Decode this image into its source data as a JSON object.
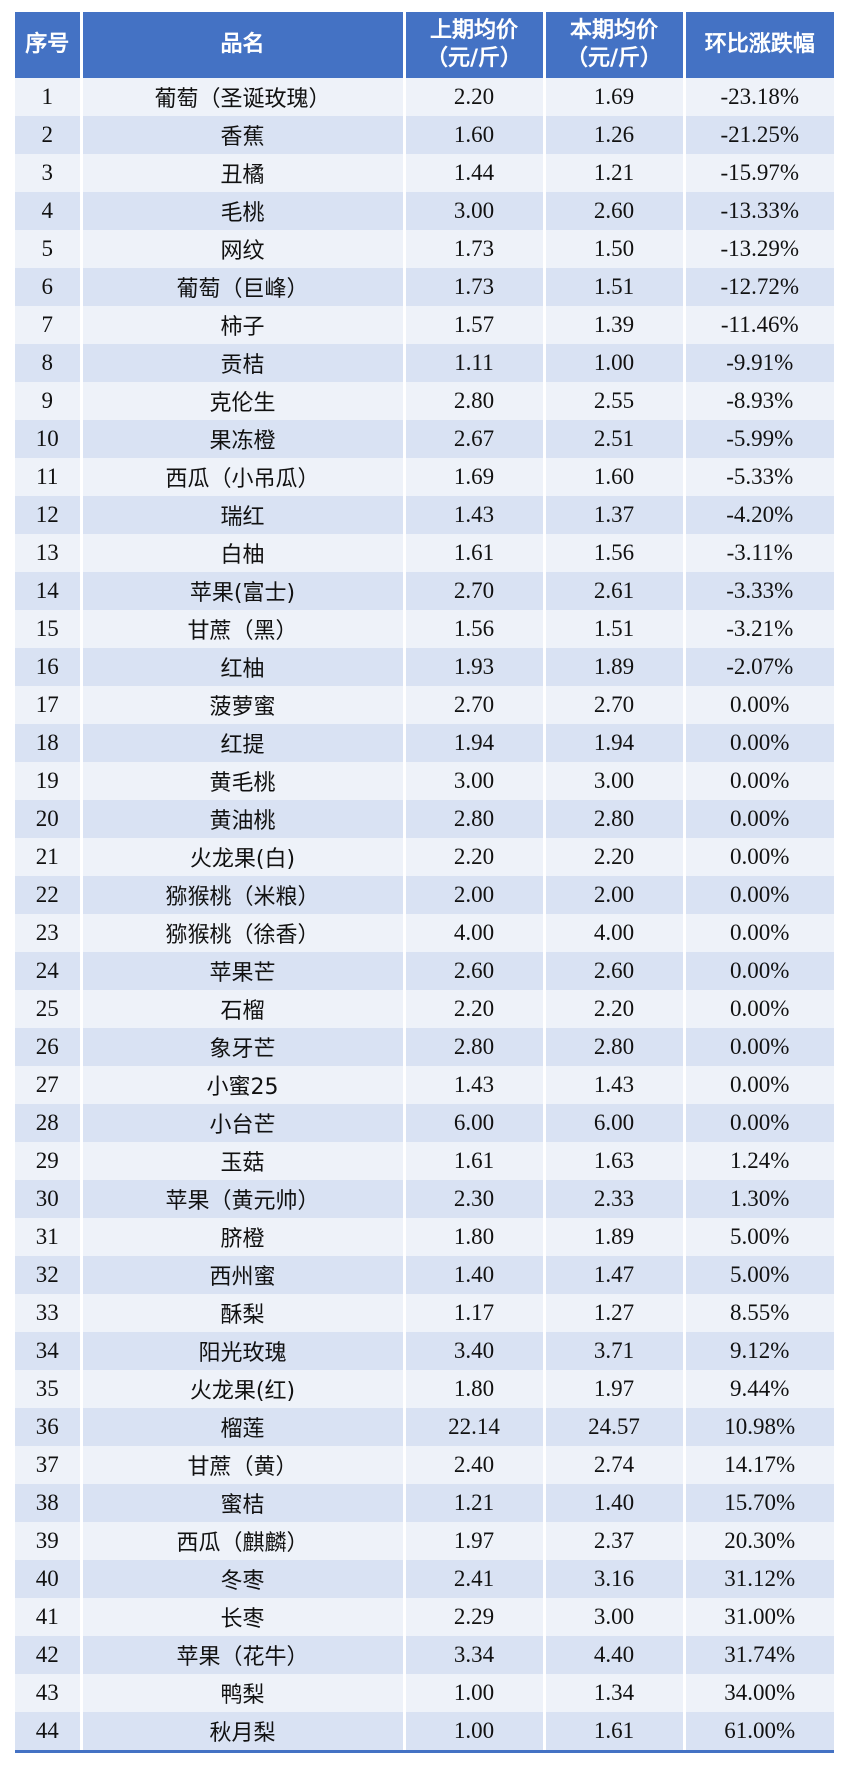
{
  "table": {
    "headers": {
      "index": "序号",
      "name": "品名",
      "prev_line1": "上期均价",
      "prev_line2": "（元/斤）",
      "cur_line1": "本期均价",
      "cur_line2": "（元/斤）",
      "change": "环比涨跌幅"
    },
    "rows": [
      {
        "index": "1",
        "name": "葡萄（圣诞玫瑰）",
        "prev": "2.20",
        "cur": "1.69",
        "change": "-23.18%"
      },
      {
        "index": "2",
        "name": "香蕉",
        "prev": "1.60",
        "cur": "1.26",
        "change": "-21.25%"
      },
      {
        "index": "3",
        "name": "丑橘",
        "prev": "1.44",
        "cur": "1.21",
        "change": "-15.97%"
      },
      {
        "index": "4",
        "name": "毛桃",
        "prev": "3.00",
        "cur": "2.60",
        "change": "-13.33%"
      },
      {
        "index": "5",
        "name": "网纹",
        "prev": "1.73",
        "cur": "1.50",
        "change": "-13.29%"
      },
      {
        "index": "6",
        "name": "葡萄（巨峰）",
        "prev": "1.73",
        "cur": "1.51",
        "change": "-12.72%"
      },
      {
        "index": "7",
        "name": "柿子",
        "prev": "1.57",
        "cur": "1.39",
        "change": "-11.46%"
      },
      {
        "index": "8",
        "name": "贡桔",
        "prev": "1.11",
        "cur": "1.00",
        "change": "-9.91%"
      },
      {
        "index": "9",
        "name": "克伦生",
        "prev": "2.80",
        "cur": "2.55",
        "change": "-8.93%"
      },
      {
        "index": "10",
        "name": "果冻橙",
        "prev": "2.67",
        "cur": "2.51",
        "change": "-5.99%"
      },
      {
        "index": "11",
        "name": "西瓜（小吊瓜）",
        "prev": "1.69",
        "cur": "1.60",
        "change": "-5.33%"
      },
      {
        "index": "12",
        "name": "瑞红",
        "prev": "1.43",
        "cur": "1.37",
        "change": "-4.20%"
      },
      {
        "index": "13",
        "name": "白柚",
        "prev": "1.61",
        "cur": "1.56",
        "change": "-3.11%"
      },
      {
        "index": "14",
        "name": "苹果(富士)",
        "prev": "2.70",
        "cur": "2.61",
        "change": "-3.33%"
      },
      {
        "index": "15",
        "name": "甘蔗（黑）",
        "prev": "1.56",
        "cur": "1.51",
        "change": "-3.21%"
      },
      {
        "index": "16",
        "name": "红柚",
        "prev": "1.93",
        "cur": "1.89",
        "change": "-2.07%"
      },
      {
        "index": "17",
        "name": "菠萝蜜",
        "prev": "2.70",
        "cur": "2.70",
        "change": "0.00%"
      },
      {
        "index": "18",
        "name": "红提",
        "prev": "1.94",
        "cur": "1.94",
        "change": "0.00%"
      },
      {
        "index": "19",
        "name": "黄毛桃",
        "prev": "3.00",
        "cur": "3.00",
        "change": "0.00%"
      },
      {
        "index": "20",
        "name": "黄油桃",
        "prev": "2.80",
        "cur": "2.80",
        "change": "0.00%"
      },
      {
        "index": "21",
        "name": "火龙果(白)",
        "prev": "2.20",
        "cur": "2.20",
        "change": "0.00%"
      },
      {
        "index": "22",
        "name": "猕猴桃（米粮）",
        "prev": "2.00",
        "cur": "2.00",
        "change": "0.00%"
      },
      {
        "index": "23",
        "name": "猕猴桃（徐香）",
        "prev": "4.00",
        "cur": "4.00",
        "change": "0.00%"
      },
      {
        "index": "24",
        "name": "苹果芒",
        "prev": "2.60",
        "cur": "2.60",
        "change": "0.00%"
      },
      {
        "index": "25",
        "name": "石榴",
        "prev": "2.20",
        "cur": "2.20",
        "change": "0.00%"
      },
      {
        "index": "26",
        "name": "象牙芒",
        "prev": "2.80",
        "cur": "2.80",
        "change": "0.00%"
      },
      {
        "index": "27",
        "name": "小蜜25",
        "prev": "1.43",
        "cur": "1.43",
        "change": "0.00%"
      },
      {
        "index": "28",
        "name": "小台芒",
        "prev": "6.00",
        "cur": "6.00",
        "change": "0.00%"
      },
      {
        "index": "29",
        "name": "玉菇",
        "prev": "1.61",
        "cur": "1.63",
        "change": "1.24%"
      },
      {
        "index": "30",
        "name": "苹果（黄元帅）",
        "prev": "2.30",
        "cur": "2.33",
        "change": "1.30%"
      },
      {
        "index": "31",
        "name": "脐橙",
        "prev": "1.80",
        "cur": "1.89",
        "change": "5.00%"
      },
      {
        "index": "32",
        "name": "西州蜜",
        "prev": "1.40",
        "cur": "1.47",
        "change": "5.00%"
      },
      {
        "index": "33",
        "name": "酥梨",
        "prev": "1.17",
        "cur": "1.27",
        "change": "8.55%"
      },
      {
        "index": "34",
        "name": "阳光玫瑰",
        "prev": "3.40",
        "cur": "3.71",
        "change": "9.12%"
      },
      {
        "index": "35",
        "name": "火龙果(红)",
        "prev": "1.80",
        "cur": "1.97",
        "change": "9.44%"
      },
      {
        "index": "36",
        "name": "榴莲",
        "prev": "22.14",
        "cur": "24.57",
        "change": "10.98%"
      },
      {
        "index": "37",
        "name": "甘蔗（黄）",
        "prev": "2.40",
        "cur": "2.74",
        "change": "14.17%"
      },
      {
        "index": "38",
        "name": "蜜桔",
        "prev": "1.21",
        "cur": "1.40",
        "change": "15.70%"
      },
      {
        "index": "39",
        "name": "西瓜（麒麟）",
        "prev": "1.97",
        "cur": "2.37",
        "change": "20.30%"
      },
      {
        "index": "40",
        "name": "冬枣",
        "prev": "2.41",
        "cur": "3.16",
        "change": "31.12%"
      },
      {
        "index": "41",
        "name": "长枣",
        "prev": "2.29",
        "cur": "3.00",
        "change": "31.00%"
      },
      {
        "index": "42",
        "name": "苹果（花牛）",
        "prev": "3.34",
        "cur": "4.40",
        "change": "31.74%"
      },
      {
        "index": "43",
        "name": "鸭梨",
        "prev": "1.00",
        "cur": "1.34",
        "change": "34.00%"
      },
      {
        "index": "44",
        "name": "秋月梨",
        "prev": "1.00",
        "cur": "1.61",
        "change": "61.00%"
      }
    ]
  },
  "colors": {
    "header_bg": "#4472c4",
    "row_light": "#eef2f9",
    "row_dark": "#d9e2f3"
  }
}
